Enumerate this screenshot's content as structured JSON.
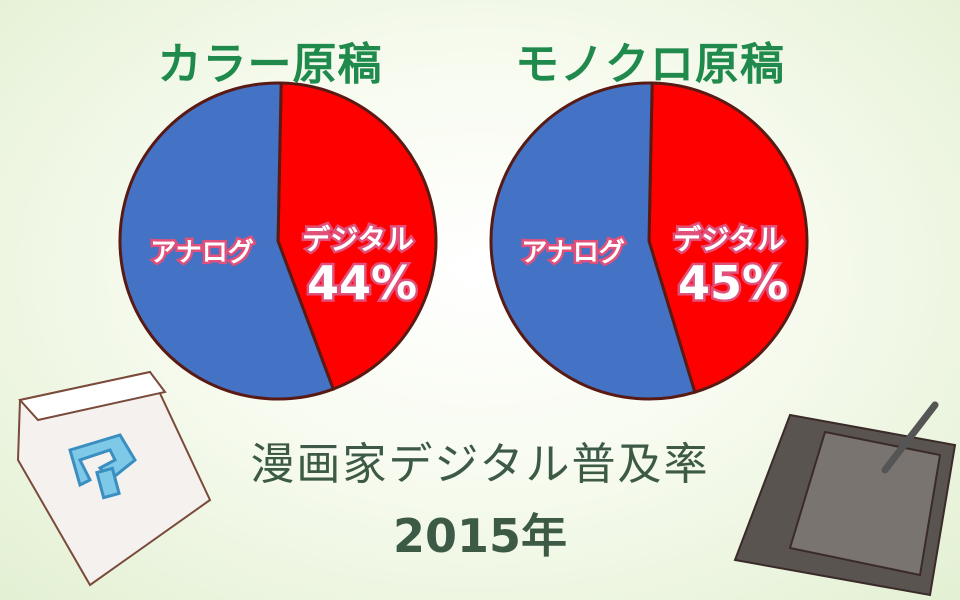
{
  "chart_data": [
    {
      "type": "pie",
      "title": "カラー原稿",
      "slices": [
        {
          "label": "デジタル",
          "value": 44,
          "value_label": "44%",
          "color": "#ff0000"
        },
        {
          "label": "アナログ",
          "value": 56,
          "color": "#4472c4"
        }
      ]
    },
    {
      "type": "pie",
      "title": "モノクロ原稿",
      "slices": [
        {
          "label": "デジタル",
          "value": 45,
          "value_label": "45%",
          "color": "#ff0000"
        },
        {
          "label": "アナログ",
          "value": 55,
          "color": "#4472c4"
        }
      ]
    }
  ],
  "caption": {
    "line1": "漫画家デジタル普及率",
    "line2": "2015年"
  },
  "decorations": {
    "left": "software-box-icon",
    "right": "pen-tablet-icon"
  }
}
